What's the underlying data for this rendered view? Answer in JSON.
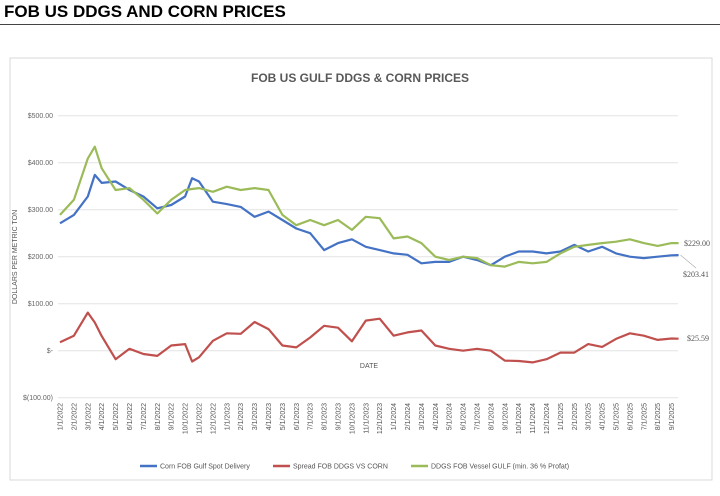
{
  "page_title": "FOB US DDGS AND CORN PRICES",
  "chart_data": {
    "type": "line",
    "title": "FOB US GULF DDGS & CORN PRICES",
    "xlabel": "DATE",
    "ylabel": "DOLLARS PER METRIC TON",
    "ylim": [
      -100,
      500
    ],
    "y_ticks": [
      500,
      400,
      300,
      200,
      100,
      0,
      -100
    ],
    "y_tick_labels": [
      "$500.00",
      "$400.00",
      "$300.00",
      "$200.00",
      "$100.00",
      "$-",
      "$(100.00)"
    ],
    "x_tick_labels": [
      "1/1/2022",
      "2/1/2022",
      "3/1/2022",
      "4/1/2022",
      "5/1/2022",
      "6/1/2022",
      "7/1/2022",
      "8/1/2022",
      "9/1/2022",
      "10/1/2022",
      "11/1/2022",
      "12/1/2022",
      "1/1/2023",
      "2/1/2023",
      "3/1/2023",
      "4/1/2023",
      "5/1/2023",
      "6/1/2023",
      "7/1/2023",
      "8/1/2023",
      "9/1/2023",
      "10/1/2023",
      "11/1/2023",
      "12/1/2023",
      "1/1/2024",
      "2/1/2024",
      "3/1/2024",
      "4/1/2024",
      "5/1/2024",
      "6/1/2024",
      "7/1/2024",
      "8/1/2024",
      "9/1/2024",
      "10/1/2024",
      "11/1/2024",
      "12/1/2024",
      "1/1/2025",
      "2/1/2025",
      "3/1/2025",
      "4/1/2025",
      "5/1/2025",
      "6/1/2025",
      "7/1/2025",
      "8/1/2025",
      "9/1/2025"
    ],
    "x_months_since_jan2022": [
      0,
      1,
      2,
      2.5,
      3,
      4,
      5,
      6,
      7,
      8,
      9,
      9.5,
      10,
      11,
      12,
      13,
      14,
      15,
      16,
      17,
      18,
      19,
      20,
      21,
      22,
      23,
      24,
      25,
      26,
      27,
      28,
      29,
      30,
      31,
      32,
      33,
      34,
      35,
      36,
      37,
      38,
      39,
      40,
      41,
      42,
      43,
      44,
      44.5
    ],
    "series": [
      {
        "name": "Corn FOB Gulf Spot Delivery",
        "color": "#4472C4",
        "values": [
          271,
          289,
          328,
          374,
          357,
          360,
          342,
          328,
          303,
          310,
          328,
          367,
          360,
          317,
          312,
          306,
          285,
          296,
          278,
          260,
          250,
          214,
          229,
          237,
          221,
          214,
          207,
          204,
          186,
          189,
          189,
          200,
          193,
          182,
          200,
          211,
          211,
          207,
          211,
          225,
          211,
          221,
          207,
          200,
          197,
          200,
          203,
          203.41
        ],
        "end_label": "$203.41"
      },
      {
        "name": "Spread FOB DDGS VS CORN",
        "color": "#C0504D",
        "values": [
          18,
          32,
          81,
          60,
          31,
          -18,
          4,
          -7,
          -11,
          11,
          14,
          -23,
          -14,
          21,
          37,
          36,
          61,
          46,
          11,
          7,
          28,
          53,
          49,
          20,
          64,
          68,
          32,
          39,
          43,
          11,
          4,
          0,
          4,
          0,
          -21,
          -22,
          -25,
          -18,
          -4,
          -4,
          14,
          8,
          25,
          37,
          32,
          23,
          26,
          25.59
        ],
        "end_label": "$25.59"
      },
      {
        "name": "DDGS FOB Vessel GULF  (min. 36 % Profat)",
        "color": "#9BBB59",
        "values": [
          289,
          321,
          409,
          434,
          388,
          342,
          346,
          321,
          292,
          321,
          342,
          344,
          346,
          338,
          349,
          342,
          346,
          342,
          289,
          267,
          278,
          267,
          278,
          257,
          285,
          282,
          239,
          243,
          229,
          200,
          193,
          200,
          197,
          182,
          179,
          189,
          186,
          189,
          207,
          221,
          225,
          229,
          232,
          237,
          229,
          223,
          229,
          229
        ],
        "end_label": "$229.00"
      }
    ],
    "grid": true,
    "legend_position": "bottom"
  }
}
